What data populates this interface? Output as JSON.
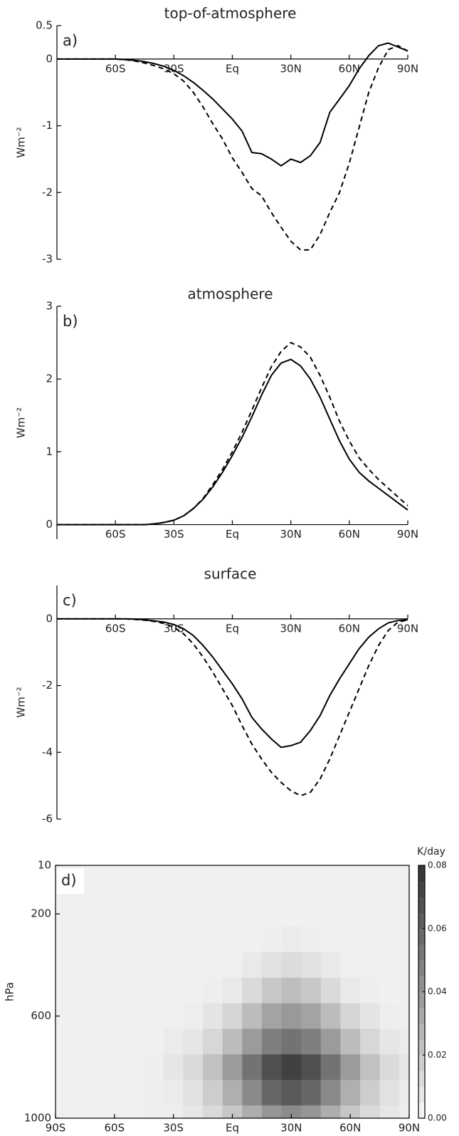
{
  "chart_data": [
    {
      "type": "line",
      "title": "top-of-atmosphere",
      "panel_label": "a)",
      "ylabel": "Wm⁻²",
      "x": [
        -90,
        -85,
        -80,
        -75,
        -70,
        -65,
        -60,
        -55,
        -50,
        -45,
        -40,
        -35,
        -30,
        -25,
        -20,
        -15,
        -10,
        -5,
        0,
        5,
        10,
        15,
        20,
        25,
        30,
        35,
        40,
        45,
        50,
        55,
        60,
        65,
        70,
        75,
        80,
        85,
        90
      ],
      "series": [
        {
          "color": "#000000",
          "linestyle": "solid",
          "values": [
            0,
            0,
            0,
            0,
            0,
            0,
            0,
            -0.01,
            -0.02,
            -0.04,
            -0.07,
            -0.11,
            -0.17,
            -0.25,
            -0.35,
            -0.47,
            -0.6,
            -0.75,
            -0.9,
            -1.08,
            -1.4,
            -1.42,
            -1.5,
            -1.6,
            -1.5,
            -1.55,
            -1.45,
            -1.25,
            -0.8,
            -0.6,
            -0.4,
            -0.15,
            0.05,
            0.2,
            0.24,
            0.18,
            0.12
          ]
        },
        {
          "color": "#000000",
          "linestyle": "dashed",
          "values": [
            0,
            0,
            0,
            0,
            0,
            0,
            0,
            -0.01,
            -0.03,
            -0.06,
            -0.1,
            -0.15,
            -0.22,
            -0.33,
            -0.5,
            -0.72,
            -0.97,
            -1.2,
            -1.48,
            -1.7,
            -1.94,
            -2.05,
            -2.3,
            -2.52,
            -2.73,
            -2.86,
            -2.86,
            -2.63,
            -2.3,
            -2.0,
            -1.56,
            -1.03,
            -0.5,
            -0.13,
            0.14,
            0.2,
            0.12
          ]
        }
      ],
      "xlim": [
        -90,
        90
      ],
      "xticks": [
        {
          "value": -60,
          "label": "60S"
        },
        {
          "value": -30,
          "label": "30S"
        },
        {
          "value": 0,
          "label": "Eq"
        },
        {
          "value": 30,
          "label": "30N"
        },
        {
          "value": 60,
          "label": "60N"
        },
        {
          "value": 90,
          "label": "90N"
        }
      ],
      "ylim": [
        -3,
        0.5
      ],
      "yticks": [
        -3,
        -2,
        -1,
        0,
        0.5
      ]
    },
    {
      "type": "line",
      "title": "atmosphere",
      "panel_label": "b)",
      "ylabel": "Wm⁻²",
      "x": [
        -90,
        -85,
        -80,
        -75,
        -70,
        -65,
        -60,
        -55,
        -50,
        -45,
        -40,
        -35,
        -30,
        -25,
        -20,
        -15,
        -10,
        -5,
        0,
        5,
        10,
        15,
        20,
        25,
        30,
        35,
        40,
        45,
        50,
        55,
        60,
        65,
        70,
        75,
        80,
        85,
        90
      ],
      "series": [
        {
          "color": "#000000",
          "linestyle": "solid",
          "values": [
            0,
            0,
            0,
            0,
            0,
            0,
            0,
            0,
            0,
            0,
            0.01,
            0.03,
            0.06,
            0.12,
            0.22,
            0.35,
            0.52,
            0.72,
            0.95,
            1.2,
            1.48,
            1.78,
            2.05,
            2.22,
            2.27,
            2.18,
            2.0,
            1.75,
            1.45,
            1.15,
            0.9,
            0.72,
            0.6,
            0.5,
            0.4,
            0.3,
            0.2
          ]
        },
        {
          "color": "#000000",
          "linestyle": "dashed",
          "values": [
            0,
            0,
            0,
            0,
            0,
            0,
            0,
            0,
            0,
            0,
            0.01,
            0.03,
            0.06,
            0.12,
            0.22,
            0.36,
            0.55,
            0.76,
            1.0,
            1.27,
            1.57,
            1.88,
            2.17,
            2.38,
            2.5,
            2.44,
            2.3,
            2.05,
            1.75,
            1.42,
            1.15,
            0.92,
            0.76,
            0.62,
            0.5,
            0.38,
            0.26
          ]
        }
      ],
      "xlim": [
        -90,
        90
      ],
      "xticks": [
        {
          "value": -60,
          "label": "60S"
        },
        {
          "value": -30,
          "label": "30S"
        },
        {
          "value": 0,
          "label": "Eq"
        },
        {
          "value": 30,
          "label": "30N"
        },
        {
          "value": 60,
          "label": "60N"
        },
        {
          "value": 90,
          "label": "90N"
        }
      ],
      "ylim": [
        -0.2,
        3
      ],
      "yticks": [
        0,
        1,
        2,
        3
      ]
    },
    {
      "type": "line",
      "title": "surface",
      "panel_label": "c)",
      "ylabel": "Wm⁻²",
      "x": [
        -90,
        -85,
        -80,
        -75,
        -70,
        -65,
        -60,
        -55,
        -50,
        -45,
        -40,
        -35,
        -30,
        -25,
        -20,
        -15,
        -10,
        -5,
        0,
        5,
        10,
        15,
        20,
        25,
        30,
        35,
        40,
        45,
        50,
        55,
        60,
        65,
        70,
        75,
        80,
        85,
        90
      ],
      "series": [
        {
          "color": "#000000",
          "linestyle": "solid",
          "values": [
            0,
            0,
            0,
            0,
            0,
            0,
            0,
            0,
            -0.01,
            -0.03,
            -0.06,
            -0.1,
            -0.17,
            -0.3,
            -0.5,
            -0.8,
            -1.15,
            -1.55,
            -1.95,
            -2.4,
            -2.95,
            -3.3,
            -3.6,
            -3.85,
            -3.8,
            -3.7,
            -3.35,
            -2.9,
            -2.3,
            -1.8,
            -1.35,
            -0.9,
            -0.55,
            -0.3,
            -0.12,
            -0.05,
            -0.03
          ]
        },
        {
          "color": "#000000",
          "linestyle": "dashed",
          "values": [
            0,
            0,
            0,
            0,
            0,
            0,
            0,
            0,
            -0.02,
            -0.04,
            -0.08,
            -0.14,
            -0.25,
            -0.45,
            -0.75,
            -1.15,
            -1.6,
            -2.1,
            -2.6,
            -3.2,
            -3.75,
            -4.2,
            -4.6,
            -4.9,
            -5.15,
            -5.3,
            -5.2,
            -4.8,
            -4.2,
            -3.5,
            -2.8,
            -2.1,
            -1.4,
            -0.8,
            -0.35,
            -0.1,
            -0.03
          ]
        }
      ],
      "xlim": [
        -90,
        90
      ],
      "xticks": [
        {
          "value": -60,
          "label": "60S"
        },
        {
          "value": -30,
          "label": "30S"
        },
        {
          "value": 0,
          "label": "Eq"
        },
        {
          "value": 30,
          "label": "30N"
        },
        {
          "value": 60,
          "label": "60N"
        },
        {
          "value": 90,
          "label": "90N"
        }
      ],
      "ylim": [
        -6,
        1
      ],
      "yticks": [
        -6,
        -4,
        -2,
        0
      ]
    },
    {
      "type": "contour",
      "panel_label": "d)",
      "ylabel": "hPa",
      "x": [
        -90,
        -80,
        -70,
        -60,
        -50,
        -40,
        -30,
        -20,
        -10,
        0,
        10,
        20,
        30,
        40,
        50,
        60,
        70,
        80,
        90
      ],
      "y": [
        10,
        100,
        200,
        300,
        400,
        500,
        600,
        700,
        800,
        900,
        1000
      ],
      "z": [
        [
          0.004,
          0.004,
          0.004,
          0.004,
          0.004,
          0.004,
          0.004,
          0.004,
          0.004,
          0.004,
          0.004,
          0.004,
          0.004,
          0.004,
          0.004,
          0.004,
          0.004,
          0.004,
          0.004
        ],
        [
          0.004,
          0.004,
          0.004,
          0.004,
          0.004,
          0.004,
          0.004,
          0.004,
          0.004,
          0.004,
          0.004,
          0.004,
          0.004,
          0.004,
          0.004,
          0.004,
          0.004,
          0.004,
          0.004
        ],
        [
          0.004,
          0.004,
          0.004,
          0.004,
          0.004,
          0.004,
          0.004,
          0.004,
          0.004,
          0.004,
          0.004,
          0.004,
          0.004,
          0.004,
          0.004,
          0.004,
          0.004,
          0.004,
          0.004
        ],
        [
          0.004,
          0.004,
          0.004,
          0.004,
          0.004,
          0.004,
          0.004,
          0.004,
          0.004,
          0.004,
          0.004,
          0.005,
          0.006,
          0.005,
          0.004,
          0.004,
          0.004,
          0.004,
          0.004
        ],
        [
          0.004,
          0.004,
          0.004,
          0.004,
          0.004,
          0.004,
          0.004,
          0.004,
          0.004,
          0.004,
          0.007,
          0.01,
          0.012,
          0.01,
          0.007,
          0.004,
          0.004,
          0.004,
          0.004
        ],
        [
          0.004,
          0.004,
          0.004,
          0.004,
          0.004,
          0.004,
          0.004,
          0.004,
          0.005,
          0.007,
          0.013,
          0.02,
          0.024,
          0.02,
          0.013,
          0.007,
          0.005,
          0.004,
          0.004
        ],
        [
          0.004,
          0.004,
          0.004,
          0.004,
          0.004,
          0.004,
          0.004,
          0.005,
          0.009,
          0.015,
          0.025,
          0.035,
          0.039,
          0.035,
          0.025,
          0.015,
          0.009,
          0.005,
          0.004
        ],
        [
          0.004,
          0.004,
          0.004,
          0.004,
          0.004,
          0.004,
          0.006,
          0.008,
          0.014,
          0.025,
          0.038,
          0.049,
          0.054,
          0.049,
          0.038,
          0.025,
          0.014,
          0.008,
          0.006
        ],
        [
          0.004,
          0.004,
          0.004,
          0.004,
          0.004,
          0.005,
          0.008,
          0.013,
          0.023,
          0.038,
          0.054,
          0.068,
          0.074,
          0.068,
          0.054,
          0.038,
          0.023,
          0.013,
          0.008
        ],
        [
          0.004,
          0.004,
          0.004,
          0.004,
          0.004,
          0.005,
          0.006,
          0.01,
          0.018,
          0.03,
          0.045,
          0.059,
          0.064,
          0.059,
          0.045,
          0.03,
          0.018,
          0.01,
          0.006
        ],
        [
          0.004,
          0.004,
          0.004,
          0.004,
          0.004,
          0.005,
          0.005,
          0.008,
          0.013,
          0.021,
          0.031,
          0.04,
          0.044,
          0.04,
          0.031,
          0.021,
          0.013,
          0.008,
          0.005
        ]
      ],
      "xlim": [
        -90,
        90
      ],
      "xticks": [
        {
          "value": -90,
          "label": "90S"
        },
        {
          "value": -60,
          "label": "60S"
        },
        {
          "value": -30,
          "label": "30S"
        },
        {
          "value": 0,
          "label": "Eq"
        },
        {
          "value": 30,
          "label": "30N"
        },
        {
          "value": 60,
          "label": "60N"
        },
        {
          "value": 90,
          "label": "90N"
        }
      ],
      "ylim": [
        1000,
        10
      ],
      "yticks": [
        10,
        200,
        600,
        1000
      ],
      "colorbar": {
        "label": "K/day",
        "lim": [
          0,
          0.08
        ],
        "ticks": [
          {
            "value": 0,
            "label": "0.00"
          },
          {
            "value": 0.02,
            "label": "0.02"
          },
          {
            "value": 0.04,
            "label": "0.04"
          },
          {
            "value": 0.06,
            "label": "0.06"
          },
          {
            "value": 0.08,
            "label": "0.08"
          }
        ]
      }
    }
  ]
}
